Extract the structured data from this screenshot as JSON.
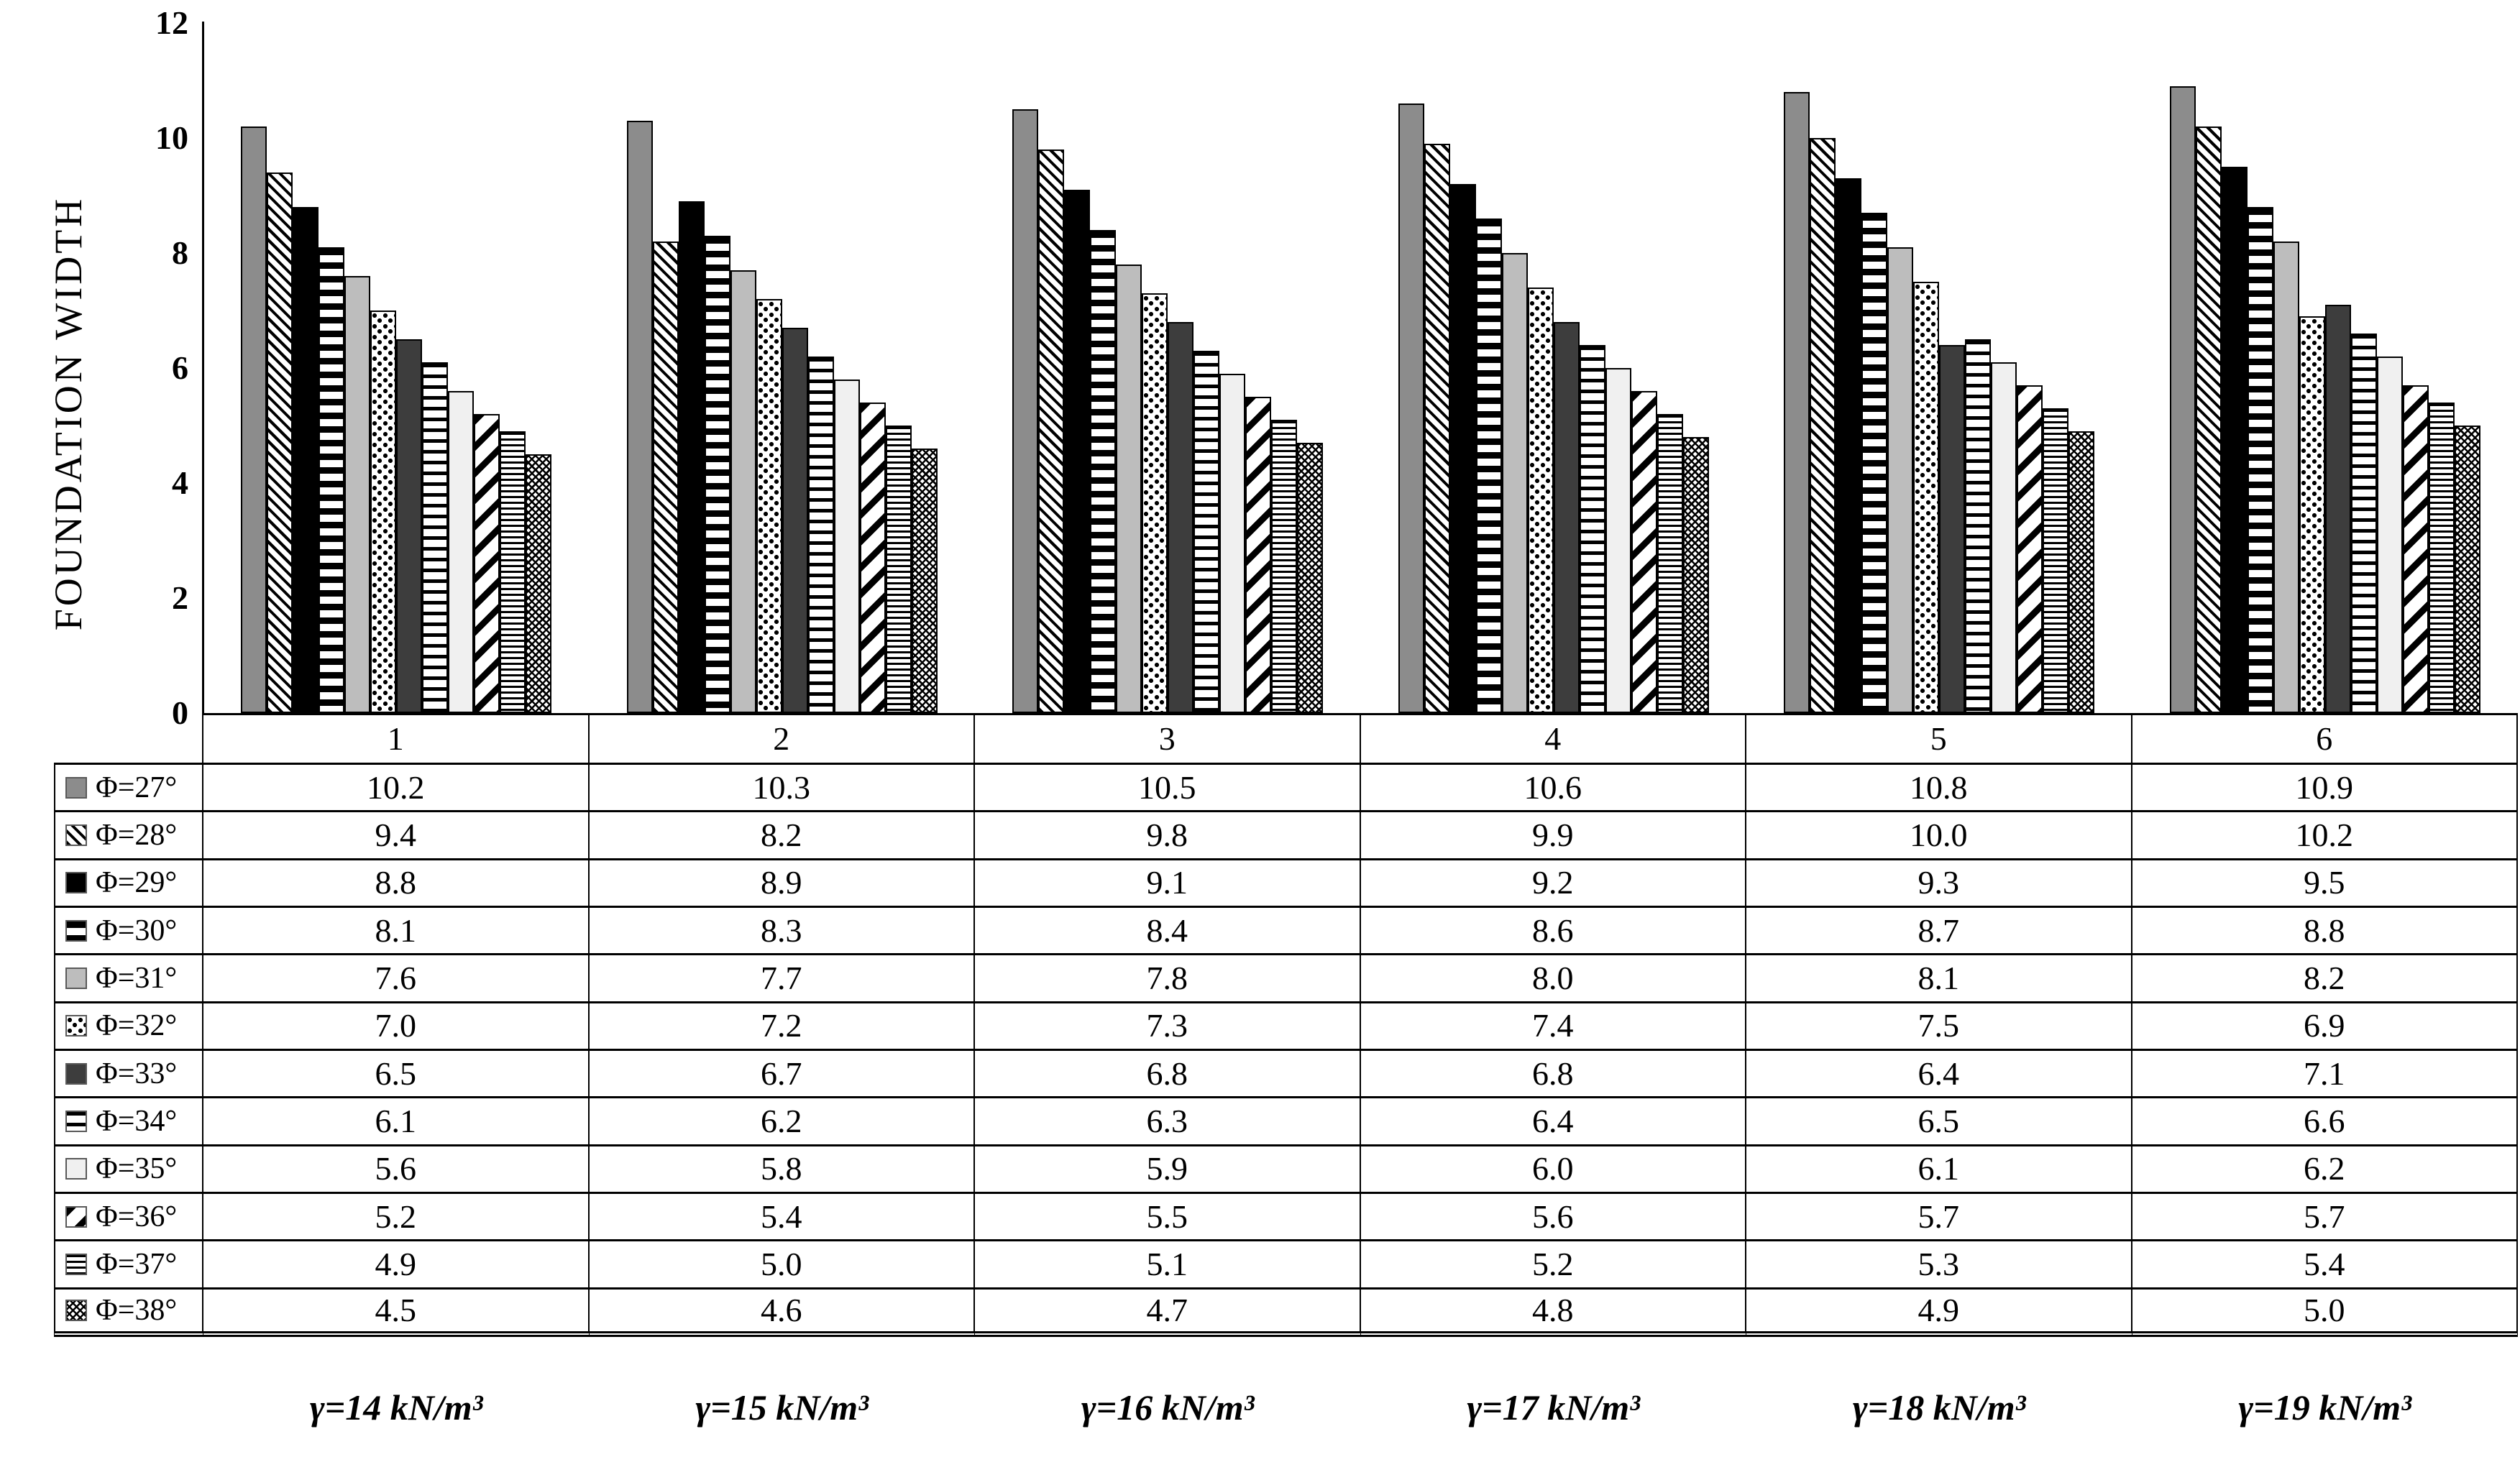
{
  "chart_data": {
    "type": "bar",
    "title": "",
    "xlabel": "",
    "ylabel": "FOUNDATION WIDTH",
    "ylim": [
      0,
      12
    ],
    "y_ticks": [
      0,
      2,
      4,
      6,
      8,
      10,
      12
    ],
    "grid": false,
    "legend_position": "table-left",
    "categories": [
      "1",
      "2",
      "3",
      "4",
      "5",
      "6"
    ],
    "category_units": [
      "γ=14 kN/m³",
      "γ=15 kN/m³",
      "γ=16 kN/m³",
      "γ=17 kN/m³",
      "γ=18 kN/m³",
      "γ=19 kN/m³"
    ],
    "value_decimals": 1,
    "series": [
      {
        "name": "Φ=27°",
        "pattern": "solid-gray",
        "values": [
          10.2,
          10.3,
          10.5,
          10.6,
          10.8,
          10.9
        ]
      },
      {
        "name": "Φ=28°",
        "pattern": "diag-thin",
        "values": [
          9.4,
          8.2,
          9.8,
          9.9,
          10.0,
          10.2
        ]
      },
      {
        "name": "Φ=29°",
        "pattern": "solid-black",
        "values": [
          8.8,
          8.9,
          9.1,
          9.2,
          9.3,
          9.5
        ]
      },
      {
        "name": "Φ=30°",
        "pattern": "hstripe-thick",
        "values": [
          8.1,
          8.3,
          8.4,
          8.6,
          8.7,
          8.8
        ]
      },
      {
        "name": "Φ=31°",
        "pattern": "solid-lightgray",
        "values": [
          7.6,
          7.7,
          7.8,
          8.0,
          8.1,
          8.2
        ]
      },
      {
        "name": "Φ=32°",
        "pattern": "speckle",
        "values": [
          7.0,
          7.2,
          7.3,
          7.4,
          7.5,
          6.9
        ]
      },
      {
        "name": "Φ=33°",
        "pattern": "solid-darkgray",
        "values": [
          6.5,
          6.7,
          6.8,
          6.8,
          6.4,
          7.1
        ]
      },
      {
        "name": "Φ=34°",
        "pattern": "hstripe-med",
        "values": [
          6.1,
          6.2,
          6.3,
          6.4,
          6.5,
          6.6
        ]
      },
      {
        "name": "Φ=35°",
        "pattern": "solid-offwhite",
        "values": [
          5.6,
          5.8,
          5.9,
          6.0,
          6.1,
          6.2
        ]
      },
      {
        "name": "Φ=36°",
        "pattern": "diag-bold",
        "values": [
          5.2,
          5.4,
          5.5,
          5.6,
          5.7,
          5.7
        ]
      },
      {
        "name": "Φ=37°",
        "pattern": "hstripe-fine",
        "values": [
          4.9,
          5.0,
          5.1,
          5.2,
          5.3,
          5.4
        ]
      },
      {
        "name": "Φ=38°",
        "pattern": "crosshatch",
        "values": [
          4.5,
          4.6,
          4.7,
          4.8,
          4.9,
          5.0
        ]
      }
    ]
  },
  "footer_labels": [
    "γ=14 kN/m³",
    "γ=15 kN/m³",
    "γ=16 kN/m³",
    "γ=17 kN/m³",
    "γ=18 kN/m³",
    "γ=19 kN/m³"
  ],
  "colors": {
    "ink": "#000000",
    "background": "#ffffff",
    "bar_gray": "#8c8c8c",
    "bar_light_gray": "#bdbdbd",
    "bar_dark_gray": "#3d3d3d",
    "bar_off_white": "#f0f0f0"
  }
}
